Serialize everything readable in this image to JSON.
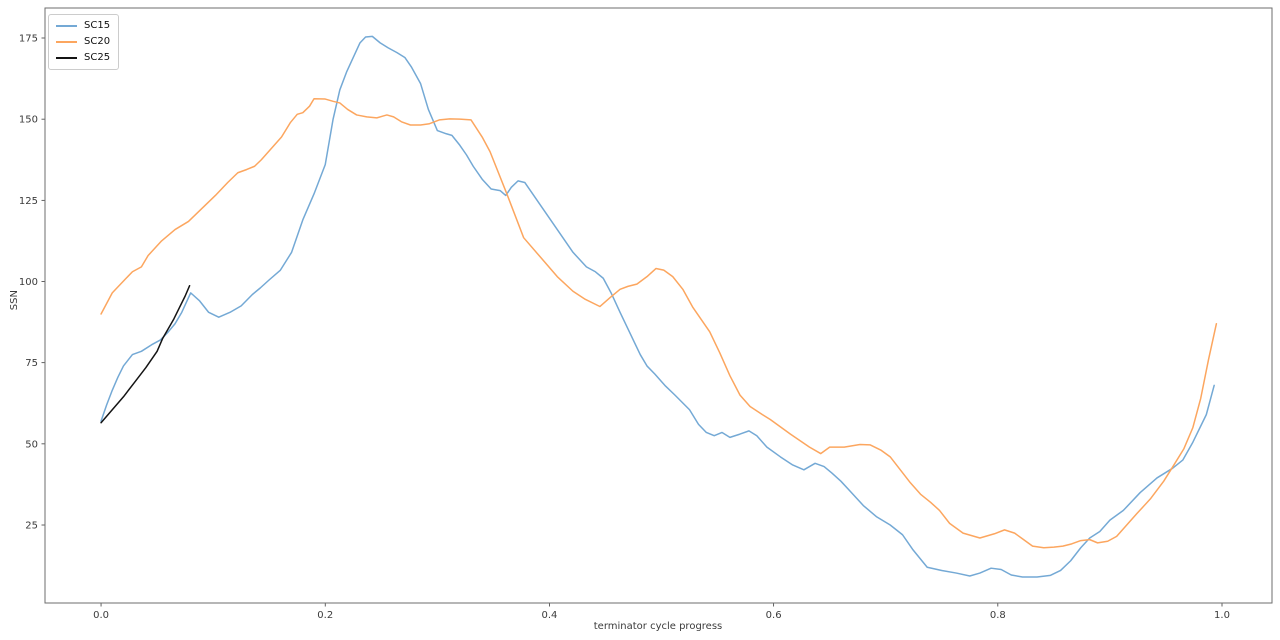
{
  "figure": {
    "background": "#ffffff",
    "spine_color": "#6e6e6e",
    "tick_color": "#3b3b3b"
  },
  "chart_data": {
    "type": "line",
    "title": "",
    "xlabel": "terminator cycle progress",
    "ylabel": "SSN",
    "grid": false,
    "legend_position": "upper left",
    "xlim": [
      -0.05,
      1.0446
    ],
    "ylim": [
      0.98,
      184.24
    ],
    "x_ticks": [
      0.0,
      0.2,
      0.4,
      0.6,
      0.8,
      1.0
    ],
    "x_tick_labels": [
      "0.0",
      "0.2",
      "0.4",
      "0.6",
      "0.8",
      "1.0"
    ],
    "y_ticks": [
      25,
      50,
      75,
      100,
      125,
      150,
      175
    ],
    "y_tick_labels": [
      "25",
      "50",
      "75",
      "100",
      "125",
      "150",
      "175"
    ],
    "series": [
      {
        "name": "SC15",
        "color": "#74a9d5",
        "points": [
          [
            0.0,
            57
          ],
          [
            0.005,
            62
          ],
          [
            0.01,
            66.5
          ],
          [
            0.015,
            70.5
          ],
          [
            0.02,
            74
          ],
          [
            0.028,
            77.5
          ],
          [
            0.036,
            78.5
          ],
          [
            0.045,
            80.5
          ],
          [
            0.053,
            82
          ],
          [
            0.06,
            84.5
          ],
          [
            0.066,
            87
          ],
          [
            0.072,
            90.5
          ],
          [
            0.08,
            96.5
          ],
          [
            0.088,
            94
          ],
          [
            0.096,
            90.5
          ],
          [
            0.105,
            89
          ],
          [
            0.115,
            90.5
          ],
          [
            0.125,
            92.5
          ],
          [
            0.135,
            96
          ],
          [
            0.142,
            98
          ],
          [
            0.15,
            100.5
          ],
          [
            0.16,
            103.5
          ],
          [
            0.17,
            109
          ],
          [
            0.18,
            119
          ],
          [
            0.19,
            127
          ],
          [
            0.2,
            136
          ],
          [
            0.207,
            150
          ],
          [
            0.213,
            159
          ],
          [
            0.219,
            164.5
          ],
          [
            0.225,
            169
          ],
          [
            0.231,
            173.5
          ],
          [
            0.236,
            175.3
          ],
          [
            0.242,
            175.5
          ],
          [
            0.249,
            173.5
          ],
          [
            0.256,
            172
          ],
          [
            0.264,
            170.5
          ],
          [
            0.271,
            169
          ],
          [
            0.277,
            166
          ],
          [
            0.285,
            161
          ],
          [
            0.292,
            153
          ],
          [
            0.3,
            146.5
          ],
          [
            0.308,
            145.5
          ],
          [
            0.313,
            145
          ],
          [
            0.32,
            142
          ],
          [
            0.326,
            139
          ],
          [
            0.332,
            135.5
          ],
          [
            0.34,
            131.5
          ],
          [
            0.348,
            128.5
          ],
          [
            0.356,
            128
          ],
          [
            0.361,
            126.5
          ],
          [
            0.366,
            129
          ],
          [
            0.372,
            131
          ],
          [
            0.378,
            130.5
          ],
          [
            0.385,
            127
          ],
          [
            0.392,
            123.5
          ],
          [
            0.407,
            116
          ],
          [
            0.421,
            109
          ],
          [
            0.433,
            104.5
          ],
          [
            0.441,
            103
          ],
          [
            0.448,
            101
          ],
          [
            0.455,
            96.5
          ],
          [
            0.463,
            90.5
          ],
          [
            0.472,
            84
          ],
          [
            0.481,
            77.5
          ],
          [
            0.487,
            74
          ],
          [
            0.494,
            71.5
          ],
          [
            0.503,
            68
          ],
          [
            0.512,
            65
          ],
          [
            0.525,
            60.5
          ],
          [
            0.533,
            56
          ],
          [
            0.54,
            53.5
          ],
          [
            0.547,
            52.5
          ],
          [
            0.554,
            53.5
          ],
          [
            0.561,
            52
          ],
          [
            0.57,
            53
          ],
          [
            0.578,
            54
          ],
          [
            0.585,
            52.5
          ],
          [
            0.594,
            49
          ],
          [
            0.606,
            46
          ],
          [
            0.617,
            43.5
          ],
          [
            0.627,
            42
          ],
          [
            0.637,
            44
          ],
          [
            0.645,
            43
          ],
          [
            0.652,
            41
          ],
          [
            0.66,
            38.5
          ],
          [
            0.668,
            35.5
          ],
          [
            0.68,
            31
          ],
          [
            0.692,
            27.5
          ],
          [
            0.704,
            25
          ],
          [
            0.715,
            22
          ],
          [
            0.724,
            17.5
          ],
          [
            0.737,
            12
          ],
          [
            0.75,
            11
          ],
          [
            0.763,
            10.2
          ],
          [
            0.775,
            9.3
          ],
          [
            0.784,
            10.2
          ],
          [
            0.794,
            11.7
          ],
          [
            0.803,
            11.3
          ],
          [
            0.812,
            9.6
          ],
          [
            0.822,
            9
          ],
          [
            0.835,
            9
          ],
          [
            0.847,
            9.5
          ],
          [
            0.856,
            11
          ],
          [
            0.865,
            14
          ],
          [
            0.874,
            18
          ],
          [
            0.882,
            21
          ],
          [
            0.891,
            23
          ],
          [
            0.9,
            26.5
          ],
          [
            0.912,
            29.5
          ],
          [
            0.927,
            35
          ],
          [
            0.942,
            39.5
          ],
          [
            0.956,
            42.5
          ],
          [
            0.965,
            45
          ],
          [
            0.974,
            50.5
          ],
          [
            0.986,
            59
          ],
          [
            0.993,
            68
          ]
        ]
      },
      {
        "name": "SC20",
        "color": "#fca65f",
        "points": [
          [
            0.0,
            90
          ],
          [
            0.01,
            96.5
          ],
          [
            0.021,
            100.5
          ],
          [
            0.028,
            103
          ],
          [
            0.036,
            104.5
          ],
          [
            0.042,
            108
          ],
          [
            0.054,
            112.5
          ],
          [
            0.066,
            116
          ],
          [
            0.078,
            118.5
          ],
          [
            0.09,
            122.5
          ],
          [
            0.102,
            126.5
          ],
          [
            0.113,
            130.5
          ],
          [
            0.122,
            133.5
          ],
          [
            0.13,
            134.5
          ],
          [
            0.137,
            135.5
          ],
          [
            0.143,
            137.5
          ],
          [
            0.152,
            141
          ],
          [
            0.161,
            144.5
          ],
          [
            0.169,
            149
          ],
          [
            0.175,
            151.5
          ],
          [
            0.18,
            152
          ],
          [
            0.186,
            154
          ],
          [
            0.19,
            156.3
          ],
          [
            0.2,
            156.2
          ],
          [
            0.207,
            155.5
          ],
          [
            0.213,
            155
          ],
          [
            0.22,
            153
          ],
          [
            0.228,
            151.3
          ],
          [
            0.237,
            150.7
          ],
          [
            0.246,
            150.4
          ],
          [
            0.255,
            151.3
          ],
          [
            0.261,
            150.7
          ],
          [
            0.268,
            149.2
          ],
          [
            0.276,
            148.2
          ],
          [
            0.285,
            148.2
          ],
          [
            0.293,
            148.6
          ],
          [
            0.302,
            149.8
          ],
          [
            0.311,
            150.1
          ],
          [
            0.32,
            150
          ],
          [
            0.33,
            149.8
          ],
          [
            0.34,
            144.5
          ],
          [
            0.347,
            140
          ],
          [
            0.362,
            127
          ],
          [
            0.377,
            113.5
          ],
          [
            0.392,
            107.5
          ],
          [
            0.407,
            101.5
          ],
          [
            0.421,
            97
          ],
          [
            0.432,
            94.5
          ],
          [
            0.445,
            92.3
          ],
          [
            0.454,
            95
          ],
          [
            0.463,
            97.6
          ],
          [
            0.47,
            98.5
          ],
          [
            0.478,
            99.2
          ],
          [
            0.487,
            101.5
          ],
          [
            0.495,
            104
          ],
          [
            0.502,
            103.5
          ],
          [
            0.51,
            101.5
          ],
          [
            0.519,
            97.6
          ],
          [
            0.528,
            92
          ],
          [
            0.535,
            88.5
          ],
          [
            0.543,
            84.5
          ],
          [
            0.552,
            78
          ],
          [
            0.561,
            71
          ],
          [
            0.57,
            65
          ],
          [
            0.579,
            61.5
          ],
          [
            0.59,
            59
          ],
          [
            0.597,
            57.5
          ],
          [
            0.615,
            53
          ],
          [
            0.632,
            49
          ],
          [
            0.642,
            47
          ],
          [
            0.65,
            49
          ],
          [
            0.663,
            49
          ],
          [
            0.677,
            49.8
          ],
          [
            0.686,
            49.7
          ],
          [
            0.696,
            48
          ],
          [
            0.704,
            46
          ],
          [
            0.713,
            42
          ],
          [
            0.722,
            38
          ],
          [
            0.731,
            34.5
          ],
          [
            0.74,
            32
          ],
          [
            0.748,
            29.5
          ],
          [
            0.757,
            25.5
          ],
          [
            0.769,
            22.5
          ],
          [
            0.784,
            21
          ],
          [
            0.797,
            22.3
          ],
          [
            0.806,
            23.5
          ],
          [
            0.815,
            22.5
          ],
          [
            0.823,
            20.5
          ],
          [
            0.831,
            18.5
          ],
          [
            0.841,
            18
          ],
          [
            0.85,
            18.2
          ],
          [
            0.858,
            18.5
          ],
          [
            0.866,
            19.2
          ],
          [
            0.874,
            20.2
          ],
          [
            0.882,
            20.5
          ],
          [
            0.889,
            19.5
          ],
          [
            0.898,
            20
          ],
          [
            0.906,
            21.5
          ],
          [
            0.915,
            25
          ],
          [
            0.924,
            28.5
          ],
          [
            0.936,
            33
          ],
          [
            0.948,
            38.5
          ],
          [
            0.958,
            44
          ],
          [
            0.966,
            48.5
          ],
          [
            0.974,
            55
          ],
          [
            0.981,
            64
          ],
          [
            0.988,
            76
          ],
          [
            0.995,
            87
          ]
        ]
      },
      {
        "name": "SC25",
        "color": "#141414",
        "points": [
          [
            0.0,
            56.5
          ],
          [
            0.01,
            60.5
          ],
          [
            0.02,
            64.5
          ],
          [
            0.03,
            69
          ],
          [
            0.04,
            73.5
          ],
          [
            0.05,
            78.5
          ],
          [
            0.055,
            82.5
          ],
          [
            0.06,
            85.5
          ],
          [
            0.065,
            88.5
          ],
          [
            0.07,
            92
          ],
          [
            0.075,
            95.5
          ],
          [
            0.079,
            98.7
          ]
        ]
      }
    ]
  }
}
